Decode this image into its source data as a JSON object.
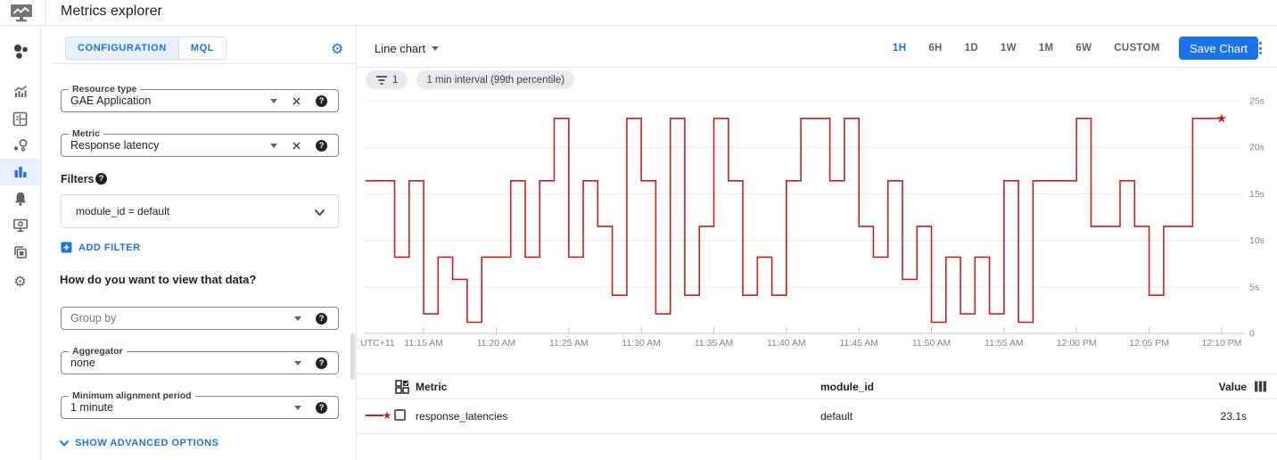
{
  "app": {
    "title": "Metrics explorer"
  },
  "sidebar": {
    "items": [
      "monitoring-overview",
      "dashboards",
      "dashboard-builder",
      "services",
      "metrics-explorer",
      "alerting",
      "uptime-checks",
      "groups",
      "settings"
    ],
    "active_item": "metrics-explorer"
  },
  "config_panel": {
    "tab_configuration": "CONFIGURATION",
    "tab_mql": "MQL",
    "resource_type_label": "Resource type",
    "resource_type_value": "GAE Application",
    "metric_label": "Metric",
    "metric_value": "Response latency",
    "filters_label": "Filters",
    "filter_value": "module_id = default",
    "add_filter_label": "ADD FILTER",
    "view_heading": "How do you want to view that data?",
    "group_by_placeholder": "Group by",
    "aggregator_label": "Aggregator",
    "aggregator_value": "none",
    "alignment_label": "Minimum alignment period",
    "alignment_value": "1 minute",
    "show_advanced_label": "SHOW ADVANCED OPTIONS"
  },
  "chart_header": {
    "chart_type_label": "Line chart",
    "time_ranges": [
      "1H",
      "6H",
      "1D",
      "1W",
      "1M",
      "6W",
      "CUSTOM"
    ],
    "active_range": "1H",
    "save_button_label": "Save Chart"
  },
  "chips": {
    "filter_count": "1",
    "interval_chip": "1 min interval (99th percentile)"
  },
  "chart_data": {
    "type": "line",
    "line_style": "step",
    "x_axis_note": "UTC+11",
    "x_start_time": "11:11 AM",
    "interval_minutes": 1,
    "x_tick_labels": [
      "11:15 AM",
      "11:20 AM",
      "11:25 AM",
      "11:30 AM",
      "11:35 AM",
      "11:40 AM",
      "11:45 AM",
      "11:50 AM",
      "11:55 AM",
      "12:00 PM",
      "12:05 PM",
      "12:10 PM"
    ],
    "ylim": [
      0,
      25
    ],
    "y_tick_values": [
      0,
      5,
      10,
      15,
      20,
      25
    ],
    "y_tick_labels": [
      "0",
      "5s",
      "10s",
      "15s",
      "20s",
      "25s"
    ],
    "grid": "horizontal",
    "y_axis_side": "right",
    "legend_position": "table-below",
    "series": [
      {
        "name": "response_latencies",
        "color": "#c5221f",
        "unit": "s",
        "end_marker": "star",
        "latest_value": 23.1,
        "values": [
          16.4,
          16.4,
          8.2,
          16.4,
          2.1,
          8.2,
          5.8,
          1.2,
          8.2,
          8.2,
          16.4,
          8.2,
          16.4,
          23.1,
          8.2,
          16.4,
          11.5,
          4.1,
          23.1,
          16.4,
          2.1,
          23.1,
          4.1,
          11.5,
          23.1,
          16.4,
          4.1,
          8.2,
          4.1,
          16.4,
          23.1,
          23.1,
          16.4,
          23.1,
          11.5,
          8.2,
          16.4,
          5.8,
          11.5,
          1.2,
          8.2,
          2.1,
          8.2,
          2.1,
          16.4,
          1.2,
          16.4,
          16.4,
          16.4,
          23.1,
          11.5,
          11.5,
          16.4,
          11.5,
          4.1,
          11.5,
          11.5,
          23.1,
          23.1,
          23.1
        ]
      }
    ]
  },
  "table": {
    "metric_header": "Metric",
    "module_id_header": "module_id",
    "value_header": "Value",
    "rows": [
      {
        "metric": "response_latencies",
        "module_id": "default",
        "value": "23.1s"
      }
    ]
  },
  "colors": {
    "accent": "#1a73e8",
    "accent_bg": "#e8f0fe",
    "series_red": "#c5221f"
  }
}
